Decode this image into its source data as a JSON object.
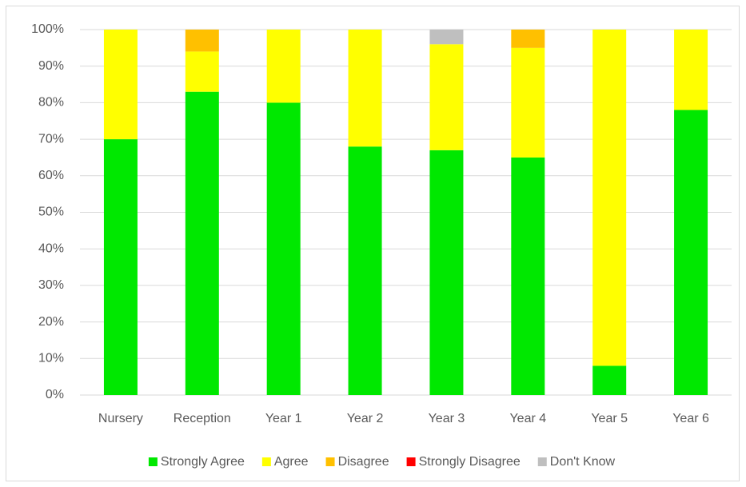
{
  "chart_data": {
    "type": "stacked_bar",
    "categories": [
      "Nursery",
      "Reception",
      "Year 1",
      "Year 2",
      "Year 3",
      "Year 4",
      "Year 5",
      "Year 6"
    ],
    "series": [
      {
        "name": "Strongly Agree",
        "color": "#00e800",
        "values": [
          70,
          83,
          80,
          68,
          67,
          65,
          8,
          78
        ]
      },
      {
        "name": "Agree",
        "color": "#ffff00",
        "values": [
          30,
          11,
          20,
          32,
          29,
          30,
          92,
          22
        ]
      },
      {
        "name": "Disagree",
        "color": "#ffc000",
        "values": [
          0,
          6,
          0,
          0,
          0,
          5,
          0,
          0
        ]
      },
      {
        "name": "Strongly Disagree",
        "color": "#ff0000",
        "values": [
          0,
          0,
          0,
          0,
          0,
          0,
          0,
          0
        ]
      },
      {
        "name": "Don't Know",
        "color": "#bfbfbf",
        "values": [
          0,
          0,
          0,
          0,
          4,
          0,
          0,
          0
        ]
      }
    ],
    "ylim": [
      0,
      100
    ],
    "yticks": [
      {
        "value": 0,
        "label": "0%"
      },
      {
        "value": 10,
        "label": "10%"
      },
      {
        "value": 20,
        "label": "20%"
      },
      {
        "value": 30,
        "label": "30%"
      },
      {
        "value": 40,
        "label": "40%"
      },
      {
        "value": 50,
        "label": "50%"
      },
      {
        "value": 60,
        "label": "60%"
      },
      {
        "value": 70,
        "label": "70%"
      },
      {
        "value": 80,
        "label": "80%"
      },
      {
        "value": 90,
        "label": "90%"
      },
      {
        "value": 100,
        "label": "100%"
      }
    ],
    "grid": true,
    "legend": "bottom"
  }
}
